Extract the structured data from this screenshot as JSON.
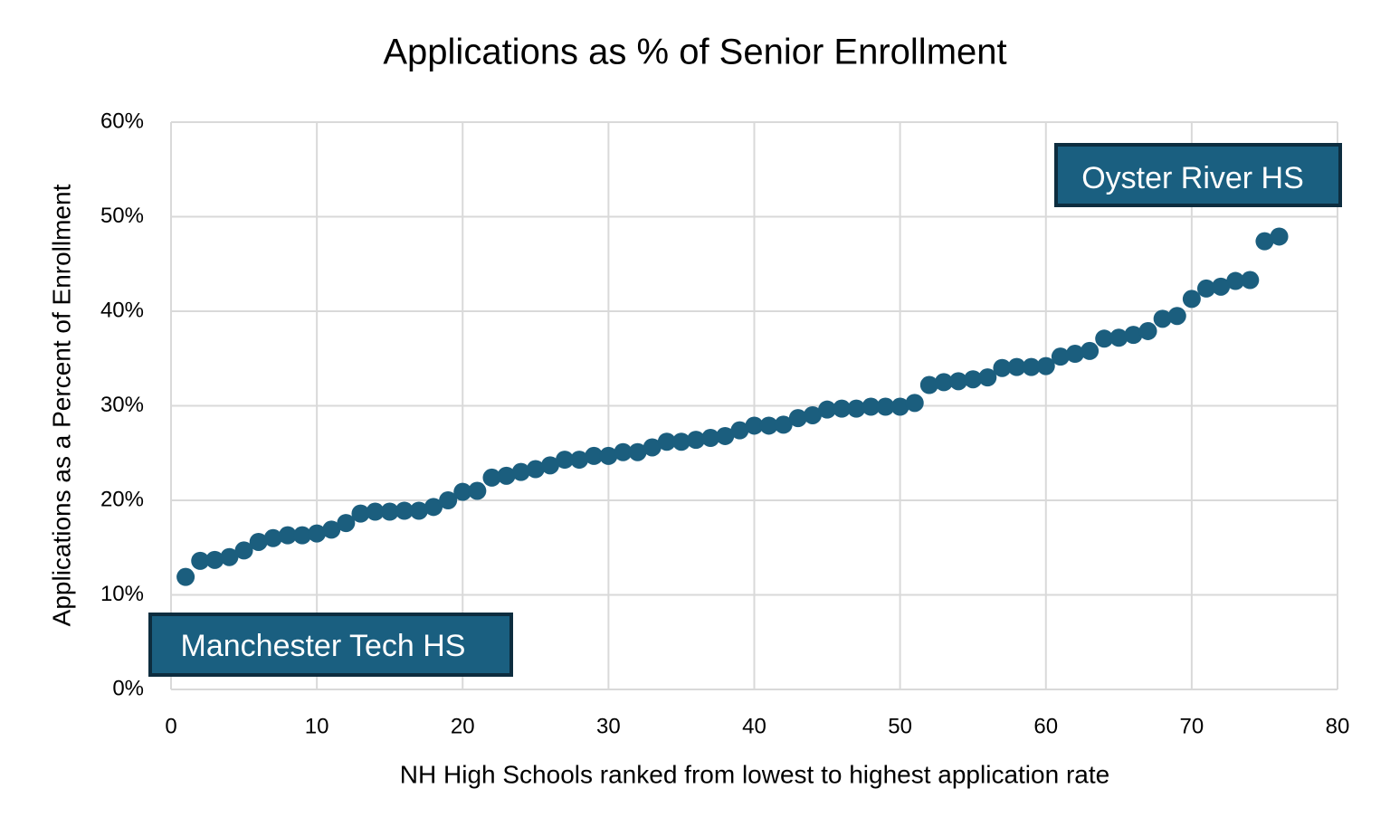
{
  "chart_data": {
    "type": "scatter",
    "title": "Applications as % of Senior Enrollment",
    "x_label": "NH High Schools ranked from lowest to highest application rate",
    "y_label": "Applications as a Percent of Enrollment",
    "annotations": [
      "Oyster River HS",
      "Manchester Tech HS"
    ],
    "color": "#1b5e7e",
    "grid": true,
    "xlim": [
      0,
      80
    ],
    "xticks": [
      0,
      10,
      20,
      30,
      40,
      50,
      60,
      70,
      80
    ],
    "ylim": [
      0,
      60
    ],
    "yticks": [
      {
        "value": 0,
        "label": "0%"
      },
      {
        "value": 10,
        "label": "10%"
      },
      {
        "value": 20,
        "label": "20%"
      },
      {
        "value": 30,
        "label": "30%"
      },
      {
        "value": 40,
        "label": "40%"
      },
      {
        "value": 50,
        "label": "50%"
      },
      {
        "value": 60,
        "label": "60%"
      }
    ],
    "x": [
      1,
      2,
      3,
      4,
      5,
      6,
      7,
      8,
      9,
      10,
      11,
      12,
      13,
      14,
      15,
      16,
      17,
      18,
      19,
      20,
      21,
      22,
      23,
      24,
      25,
      26,
      27,
      28,
      29,
      30,
      31,
      32,
      33,
      34,
      35,
      36,
      37,
      38,
      39,
      40,
      41,
      42,
      43,
      44,
      45,
      46,
      47,
      48,
      49,
      50,
      51,
      52,
      53,
      54,
      55,
      56,
      57,
      58,
      59,
      60,
      61,
      62,
      63,
      64,
      65,
      66,
      67,
      68,
      69,
      70,
      71,
      72,
      73,
      74,
      75,
      76
    ],
    "values": [
      11.9,
      13.6,
      13.7,
      14.0,
      14.7,
      15.6,
      16.0,
      16.3,
      16.3,
      16.5,
      16.9,
      17.6,
      18.6,
      18.8,
      18.8,
      18.9,
      18.9,
      19.3,
      20.0,
      20.9,
      21.0,
      22.4,
      22.6,
      23.0,
      23.3,
      23.7,
      24.3,
      24.3,
      24.7,
      24.7,
      25.1,
      25.1,
      25.6,
      26.2,
      26.2,
      26.4,
      26.6,
      26.8,
      27.4,
      27.9,
      27.9,
      28.0,
      28.7,
      29.0,
      29.6,
      29.7,
      29.7,
      29.9,
      29.9,
      29.9,
      30.3,
      32.2,
      32.5,
      32.6,
      32.8,
      33.0,
      34.0,
      34.1,
      34.1,
      34.2,
      35.2,
      35.5,
      35.8,
      37.1,
      37.2,
      37.5,
      37.9,
      39.2,
      39.5,
      41.3,
      42.4,
      42.6,
      43.2,
      43.3,
      47.4,
      47.9
    ]
  }
}
